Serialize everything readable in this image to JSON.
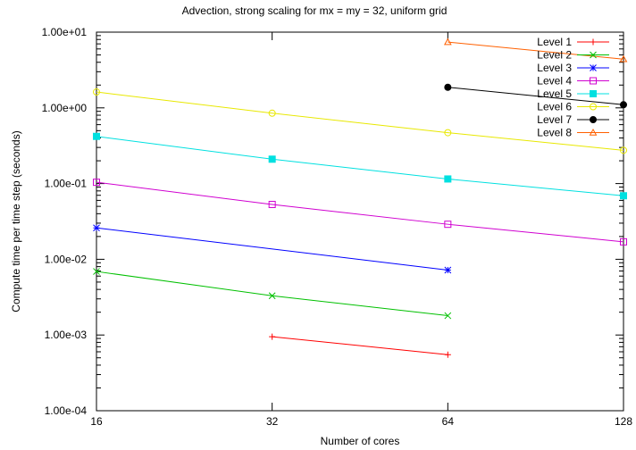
{
  "chart_data": {
    "type": "line",
    "title": "Advection, strong scaling for mx = my = 32, uniform grid",
    "xlabel": "Number of cores",
    "ylabel": "Compute time per time step (seconds)",
    "x_scale": "log2",
    "y_scale": "log10",
    "xlim": [
      16,
      128
    ],
    "ylim": [
      0.0001,
      10
    ],
    "x_ticks": [
      16,
      32,
      64,
      128
    ],
    "x_tick_labels": [
      "16",
      "32",
      "64",
      "128"
    ],
    "y_ticks": [
      0.0001,
      0.001,
      0.01,
      0.1,
      1,
      10
    ],
    "y_tick_labels": [
      "1.00e-04",
      "1.00e-03",
      "1.00e-02",
      "1.00e-01",
      "1.00e+00",
      "1.00e+01"
    ],
    "grid": false,
    "legend_position": "top-right",
    "series": [
      {
        "name": "Level 1",
        "color": "#ff0000",
        "marker": "plus",
        "x": [
          32,
          64
        ],
        "y": [
          0.00095,
          0.00055
        ]
      },
      {
        "name": "Level 2",
        "color": "#00c000",
        "marker": "cross",
        "x": [
          16,
          32,
          64
        ],
        "y": [
          0.0069,
          0.0033,
          0.0018
        ]
      },
      {
        "name": "Level 3",
        "color": "#0000ff",
        "marker": "star",
        "x": [
          16,
          64
        ],
        "y": [
          0.026,
          0.0072
        ]
      },
      {
        "name": "Level 4",
        "color": "#d000d0",
        "marker": "open-square",
        "x": [
          16,
          32,
          64,
          128
        ],
        "y": [
          0.104,
          0.053,
          0.029,
          0.017
        ]
      },
      {
        "name": "Level 5",
        "color": "#00e0e0",
        "marker": "filled-square",
        "x": [
          16,
          32,
          64,
          128
        ],
        "y": [
          0.42,
          0.21,
          0.115,
          0.069
        ]
      },
      {
        "name": "Level 6",
        "color": "#e8e800",
        "marker": "open-circle",
        "x": [
          16,
          32,
          64,
          128
        ],
        "y": [
          1.62,
          0.85,
          0.47,
          0.275
        ]
      },
      {
        "name": "Level 7",
        "color": "#000000",
        "marker": "filled-circle",
        "x": [
          64,
          128
        ],
        "y": [
          1.87,
          1.1
        ]
      },
      {
        "name": "Level 8",
        "color": "#ff6000",
        "marker": "open-triangle",
        "x": [
          64,
          128
        ],
        "y": [
          7.4,
          4.4
        ]
      }
    ]
  }
}
